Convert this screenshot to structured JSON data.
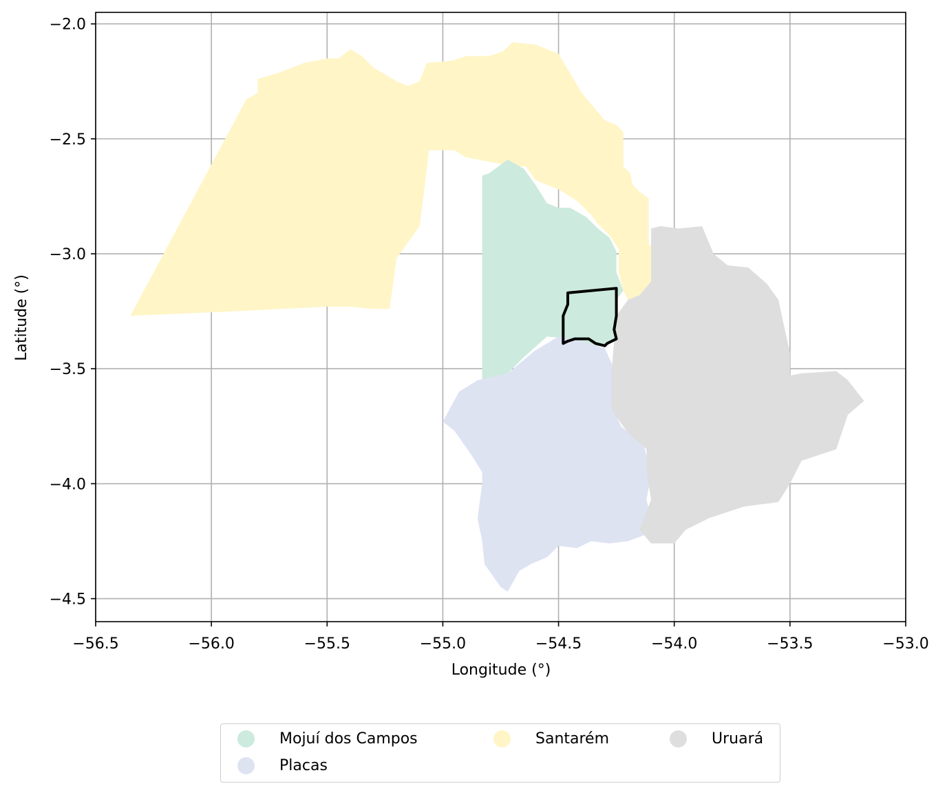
{
  "chart_data": {
    "type": "map",
    "xlabel": "Longitude (°)",
    "ylabel": "Latitude (°)",
    "xlim": [
      -56.5,
      -53.0
    ],
    "ylim": [
      -4.6,
      -1.95
    ],
    "x_ticks": [
      -56.5,
      -56.0,
      -55.5,
      -55.0,
      -54.5,
      -54.0,
      -53.5,
      -53.0
    ],
    "x_tick_labels": [
      "−56.5",
      "−56.0",
      "−55.5",
      "−55.0",
      "−54.5",
      "−54.0",
      "−53.5",
      "−53.0"
    ],
    "y_ticks": [
      -2.0,
      -2.5,
      -3.0,
      -3.5,
      -4.0,
      -4.5
    ],
    "y_tick_labels": [
      "−2.0",
      "−2.5",
      "−3.0",
      "−3.5",
      "−4.0",
      "−4.5"
    ],
    "grid": true,
    "legend_placement": "bottom-center",
    "regions": [
      {
        "name": "Santarém",
        "color": "#fff5c6",
        "polygons": [
          [
            [
              -56.35,
              -3.27
            ],
            [
              -55.85,
              -2.33
            ],
            [
              -55.8,
              -2.3
            ],
            [
              -55.8,
              -2.24
            ],
            [
              -55.7,
              -2.21
            ],
            [
              -55.6,
              -2.17
            ],
            [
              -55.5,
              -2.15
            ],
            [
              -55.45,
              -2.15
            ],
            [
              -55.4,
              -2.11
            ],
            [
              -55.35,
              -2.14
            ],
            [
              -55.3,
              -2.19
            ],
            [
              -55.25,
              -2.22
            ],
            [
              -55.2,
              -2.25
            ],
            [
              -55.15,
              -2.27
            ],
            [
              -55.1,
              -2.25
            ],
            [
              -55.07,
              -2.17
            ],
            [
              -54.96,
              -2.16
            ],
            [
              -54.9,
              -2.14
            ],
            [
              -54.8,
              -2.14
            ],
            [
              -54.74,
              -2.12
            ],
            [
              -54.7,
              -2.08
            ],
            [
              -54.6,
              -2.09
            ],
            [
              -54.5,
              -2.13
            ],
            [
              -54.4,
              -2.3
            ],
            [
              -54.3,
              -2.42
            ],
            [
              -54.25,
              -2.44
            ],
            [
              -54.22,
              -2.47
            ],
            [
              -54.22,
              -2.62
            ],
            [
              -54.19,
              -2.65
            ],
            [
              -54.18,
              -2.7
            ],
            [
              -54.15,
              -2.73
            ],
            [
              -54.11,
              -2.76
            ],
            [
              -54.11,
              -2.96
            ],
            [
              -54.08,
              -2.98
            ],
            [
              -54.05,
              -3.0
            ],
            [
              -54.05,
              -3.08
            ],
            [
              -54.08,
              -3.13
            ],
            [
              -54.15,
              -3.18
            ],
            [
              -54.2,
              -3.2
            ],
            [
              -54.22,
              -3.16
            ],
            [
              -54.24,
              -3.08
            ],
            [
              -54.24,
              -2.98
            ],
            [
              -54.28,
              -2.92
            ],
            [
              -54.33,
              -2.87
            ],
            [
              -54.36,
              -2.83
            ],
            [
              -54.42,
              -2.77
            ],
            [
              -54.5,
              -2.72
            ],
            [
              -54.55,
              -2.7
            ],
            [
              -54.6,
              -2.68
            ],
            [
              -54.64,
              -2.62
            ],
            [
              -54.7,
              -2.62
            ],
            [
              -54.8,
              -2.6
            ],
            [
              -54.9,
              -2.58
            ],
            [
              -54.95,
              -2.55
            ],
            [
              -55.06,
              -2.55
            ],
            [
              -55.08,
              -2.72
            ],
            [
              -55.1,
              -2.88
            ],
            [
              -55.15,
              -2.95
            ],
            [
              -55.2,
              -3.02
            ],
            [
              -55.23,
              -3.24
            ],
            [
              -55.3,
              -3.24
            ],
            [
              -55.4,
              -3.23
            ],
            [
              -55.5,
              -3.23
            ],
            [
              -55.7,
              -3.24
            ],
            [
              -55.9,
              -3.25
            ],
            [
              -56.35,
              -3.27
            ]
          ]
        ]
      },
      {
        "name": "Mojuí dos Campos",
        "color": "#cceadd",
        "polygons": [
          [
            [
              -54.83,
              -2.66
            ],
            [
              -54.8,
              -2.65
            ],
            [
              -54.72,
              -2.59
            ],
            [
              -54.65,
              -2.63
            ],
            [
              -54.6,
              -2.7
            ],
            [
              -54.55,
              -2.78
            ],
            [
              -54.5,
              -2.8
            ],
            [
              -54.45,
              -2.8
            ],
            [
              -54.38,
              -2.84
            ],
            [
              -54.33,
              -2.89
            ],
            [
              -54.28,
              -2.93
            ],
            [
              -54.25,
              -2.99
            ],
            [
              -54.25,
              -3.08
            ],
            [
              -54.22,
              -3.16
            ],
            [
              -54.25,
              -3.2
            ],
            [
              -54.25,
              -3.27
            ],
            [
              -54.26,
              -3.38
            ],
            [
              -54.35,
              -3.41
            ],
            [
              -54.45,
              -3.37
            ],
            [
              -54.55,
              -3.36
            ],
            [
              -54.65,
              -3.45
            ],
            [
              -54.72,
              -3.52
            ],
            [
              -54.83,
              -3.55
            ],
            [
              -54.83,
              -2.66
            ]
          ]
        ]
      },
      {
        "name": "Placas",
        "color": "#dee3f2",
        "polygons": [
          [
            [
              -54.85,
              -3.55
            ],
            [
              -54.72,
              -3.52
            ],
            [
              -54.6,
              -3.42
            ],
            [
              -54.5,
              -3.36
            ],
            [
              -54.4,
              -3.38
            ],
            [
              -54.3,
              -3.41
            ],
            [
              -54.26,
              -3.5
            ],
            [
              -54.27,
              -3.66
            ],
            [
              -54.23,
              -3.75
            ],
            [
              -54.13,
              -3.84
            ],
            [
              -54.1,
              -3.96
            ],
            [
              -54.12,
              -4.07
            ],
            [
              -54.1,
              -4.15
            ],
            [
              -54.12,
              -4.22
            ],
            [
              -54.2,
              -4.25
            ],
            [
              -54.28,
              -4.26
            ],
            [
              -54.36,
              -4.25
            ],
            [
              -54.42,
              -4.28
            ],
            [
              -54.5,
              -4.27
            ],
            [
              -54.55,
              -4.32
            ],
            [
              -54.62,
              -4.35
            ],
            [
              -54.67,
              -4.38
            ],
            [
              -54.72,
              -4.47
            ],
            [
              -54.75,
              -4.45
            ],
            [
              -54.82,
              -4.35
            ],
            [
              -54.83,
              -4.25
            ],
            [
              -54.85,
              -4.15
            ],
            [
              -54.83,
              -4.0
            ],
            [
              -54.83,
              -3.95
            ],
            [
              -54.88,
              -3.87
            ],
            [
              -54.95,
              -3.77
            ],
            [
              -55.0,
              -3.73
            ],
            [
              -54.93,
              -3.6
            ],
            [
              -54.85,
              -3.55
            ]
          ]
        ]
      },
      {
        "name": "Uruará",
        "color": "#dedede",
        "polygons": [
          [
            [
              -54.1,
              -2.89
            ],
            [
              -54.06,
              -2.88
            ],
            [
              -53.98,
              -2.89
            ],
            [
              -53.88,
              -2.88
            ],
            [
              -53.83,
              -3.0
            ],
            [
              -53.77,
              -3.05
            ],
            [
              -53.68,
              -3.06
            ],
            [
              -53.6,
              -3.13
            ],
            [
              -53.55,
              -3.2
            ],
            [
              -53.52,
              -3.34
            ],
            [
              -53.5,
              -3.43
            ],
            [
              -53.5,
              -3.53
            ],
            [
              -53.45,
              -3.52
            ],
            [
              -53.3,
              -3.51
            ],
            [
              -53.25,
              -3.55
            ],
            [
              -53.18,
              -3.64
            ],
            [
              -53.25,
              -3.7
            ],
            [
              -53.3,
              -3.85
            ],
            [
              -53.45,
              -3.9
            ],
            [
              -53.5,
              -4.0
            ],
            [
              -53.55,
              -4.08
            ],
            [
              -53.7,
              -4.1
            ],
            [
              -53.85,
              -4.15
            ],
            [
              -53.95,
              -4.2
            ],
            [
              -54.0,
              -4.26
            ],
            [
              -54.1,
              -4.26
            ],
            [
              -54.15,
              -4.2
            ],
            [
              -54.1,
              -4.07
            ],
            [
              -54.12,
              -3.95
            ],
            [
              -54.12,
              -3.85
            ],
            [
              -54.2,
              -3.78
            ],
            [
              -54.27,
              -3.68
            ],
            [
              -54.27,
              -3.5
            ],
            [
              -54.26,
              -3.38
            ],
            [
              -54.25,
              -3.27
            ],
            [
              -54.2,
              -3.2
            ],
            [
              -54.15,
              -3.18
            ],
            [
              -54.1,
              -3.12
            ],
            [
              -54.1,
              -2.89
            ]
          ]
        ]
      }
    ],
    "highlight_outline": {
      "stroke": "#000000",
      "polygon": [
        [
          -54.46,
          -3.17
        ],
        [
          -54.25,
          -3.15
        ],
        [
          -54.25,
          -3.27
        ],
        [
          -54.26,
          -3.33
        ],
        [
          -54.25,
          -3.37
        ],
        [
          -54.29,
          -3.39
        ],
        [
          -54.3,
          -3.4
        ],
        [
          -54.34,
          -3.39
        ],
        [
          -54.37,
          -3.37
        ],
        [
          -54.43,
          -3.37
        ],
        [
          -54.46,
          -3.38
        ],
        [
          -54.48,
          -3.39
        ],
        [
          -54.48,
          -3.33
        ],
        [
          -54.48,
          -3.27
        ],
        [
          -54.46,
          -3.22
        ],
        [
          -54.46,
          -3.17
        ]
      ]
    },
    "legend": [
      {
        "label": "Mojuí dos Campos",
        "color": "#cceadd"
      },
      {
        "label": "Santarém",
        "color": "#fff5c6"
      },
      {
        "label": "Uruará",
        "color": "#dedede"
      },
      {
        "label": "Placas",
        "color": "#dee3f2"
      }
    ]
  }
}
